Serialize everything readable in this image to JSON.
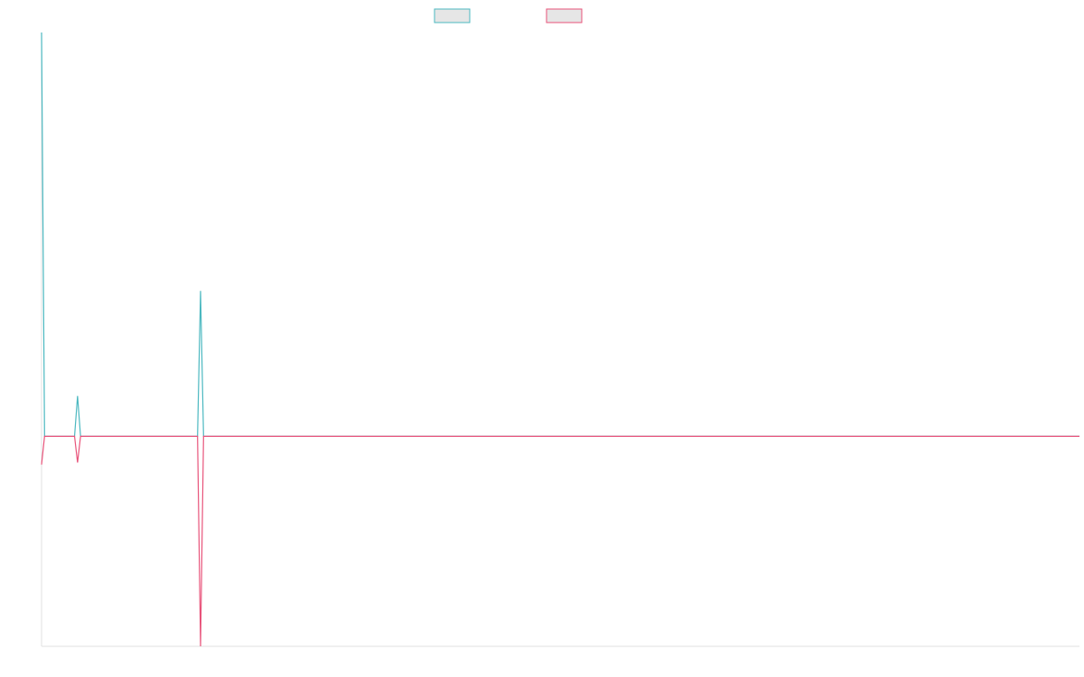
{
  "chart_data": {
    "type": "line",
    "x": [
      0,
      1,
      11,
      12,
      13,
      52,
      53,
      54,
      346
    ],
    "series": [
      {
        "color": "#4bb8c0",
        "values": [
          1,
          0,
          0,
          0.1,
          0,
          0,
          0.36,
          0,
          0
        ]
      },
      {
        "color": "#e8537a",
        "values": [
          -0.07,
          0,
          0,
          -0.065,
          0,
          0,
          -0.52,
          0,
          0
        ]
      }
    ],
    "xlim": [
      0,
      346
    ],
    "ylim": [
      -0.52,
      1
    ]
  }
}
